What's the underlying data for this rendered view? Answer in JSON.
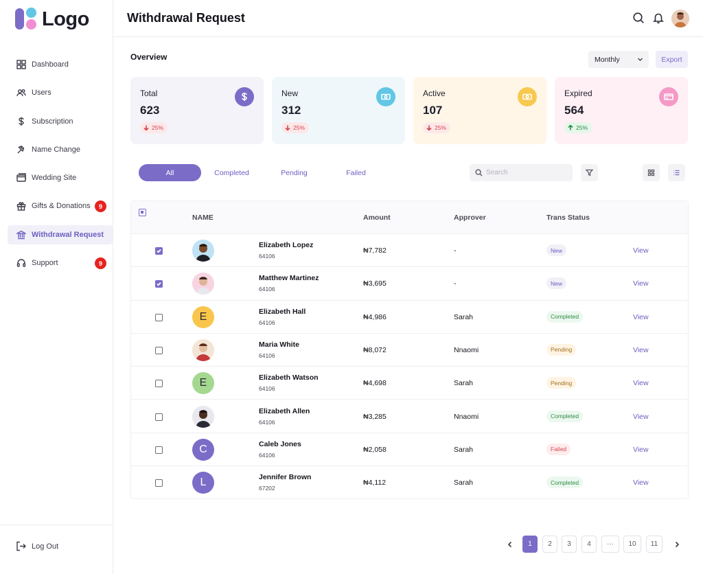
{
  "brand": {
    "logo_text": "Logo"
  },
  "sidebar": {
    "items": [
      {
        "label": "Dashboard",
        "icon": "grid-icon",
        "badge": ""
      },
      {
        "label": "Users",
        "icon": "users-icon",
        "badge": ""
      },
      {
        "label": "Subscription",
        "icon": "dollar-icon",
        "badge": ""
      },
      {
        "label": "Name Change",
        "icon": "gavel-icon",
        "badge": ""
      },
      {
        "label": "Wedding Site",
        "icon": "browser-window-icon",
        "badge": ""
      },
      {
        "label": "Gifts & Donations",
        "icon": "gift-icon",
        "badge": "9"
      },
      {
        "label": "Withdrawal Request",
        "icon": "bank-icon",
        "badge": ""
      },
      {
        "label": "Support",
        "icon": "headset-icon",
        "badge": "9"
      }
    ],
    "active_item": "Withdrawal Request",
    "logout_label": "Log Out"
  },
  "header": {
    "title": "Withdrawal Request",
    "icons": [
      "search-icon",
      "bell-icon",
      "avatar"
    ]
  },
  "overview": {
    "title": "Overview",
    "period": "Monthly",
    "export_label": "Export",
    "cards": [
      {
        "label": "Total",
        "value": "623",
        "change": "25%",
        "trend": "down",
        "icon": "dollar-icon",
        "bg": "#f4f3f9",
        "icon_bg": "#7b6cc8",
        "pill_bg": "#fde8e9",
        "pill_color": "#d64550"
      },
      {
        "label": "New",
        "value": "312",
        "change": "25%",
        "trend": "down",
        "icon": "cash-icon",
        "bg": "#eff7fb",
        "icon_bg": "#62c6e5",
        "pill_bg": "#fde8e9",
        "pill_color": "#d64550"
      },
      {
        "label": "Active",
        "value": "107",
        "change": "25%",
        "trend": "down",
        "icon": "cash-icon",
        "bg": "#fff6e8",
        "icon_bg": "#f8c84f",
        "pill_bg": "#fde8e9",
        "pill_color": "#d64550"
      },
      {
        "label": "Expired",
        "value": "564",
        "change": "25%",
        "trend": "up",
        "icon": "card-icon",
        "bg": "#fff0f5",
        "icon_bg": "#f59ac6",
        "pill_bg": "#e4f7ea",
        "pill_color": "#2d8b45"
      }
    ]
  },
  "filters": {
    "tabs": [
      "All",
      "Completed",
      "Pending",
      "Failed"
    ],
    "active_tab": "All",
    "search_placeholder": "Search"
  },
  "table": {
    "columns": [
      "NAME",
      "Amount",
      "Approver",
      "Trans Status"
    ],
    "rows": [
      {
        "checked": true,
        "avatar": "photo",
        "initial": "",
        "avatar_bg": "#bfe3f5",
        "name": "Elizabeth Lopez",
        "id": "64106",
        "amount": "₦7,782",
        "approver": "-",
        "status": "New",
        "status_class": "new",
        "action": "View"
      },
      {
        "checked": true,
        "avatar": "photo",
        "initial": "",
        "avatar_bg": "#f8d4e3",
        "name": "Matthew Martinez",
        "id": "64106",
        "amount": "₦3,695",
        "approver": "-",
        "status": "New",
        "status_class": "new",
        "action": "View"
      },
      {
        "checked": false,
        "avatar": "initial",
        "initial": "E",
        "avatar_bg": "#f9c54b",
        "name": "Elizabeth Hall",
        "id": "64106",
        "amount": "₦4,986",
        "approver": "Sarah",
        "status": "Completed",
        "status_class": "completed",
        "action": "View"
      },
      {
        "checked": false,
        "avatar": "photo",
        "initial": "",
        "avatar_bg": "#f3e6d6",
        "name": "Maria White",
        "id": "64106",
        "amount": "₦8,072",
        "approver": "Nnaomi",
        "status": "Pending",
        "status_class": "pending",
        "action": "View"
      },
      {
        "checked": false,
        "avatar": "initial",
        "initial": "E",
        "avatar_bg": "#a4d890",
        "name": "Elizabeth Watson",
        "id": "64106",
        "amount": "₦4,698",
        "approver": "Sarah",
        "status": "Pending",
        "status_class": "pending",
        "action": "View"
      },
      {
        "checked": false,
        "avatar": "photo",
        "initial": "",
        "avatar_bg": "#e8e8ee",
        "name": "Elizabeth Allen",
        "id": "64106",
        "amount": "₦3,285",
        "approver": "Nnaomi",
        "status": "Completed",
        "status_class": "completed",
        "action": "View"
      },
      {
        "checked": false,
        "avatar": "initial",
        "initial": "C",
        "avatar_bg": "#7b6cc8",
        "name": "Caleb Jones",
        "id": "64106",
        "amount": "₦2,058",
        "approver": "Sarah",
        "status": "Failed",
        "status_class": "failed",
        "action": "View"
      },
      {
        "checked": false,
        "avatar": "initial",
        "initial": "L",
        "avatar_bg": "#7b6cc8",
        "name": "Jennifer Brown",
        "id": "67202",
        "amount": "₦4,112",
        "approver": "Sarah",
        "status": "Completed",
        "status_class": "completed",
        "action": "View"
      }
    ]
  },
  "pagination": {
    "pages": [
      "1",
      "2",
      "3",
      "4",
      "···",
      "10",
      "11"
    ],
    "current": "1"
  },
  "colors": {
    "accent": "#7b6cc8",
    "danger": "#e5231f"
  }
}
